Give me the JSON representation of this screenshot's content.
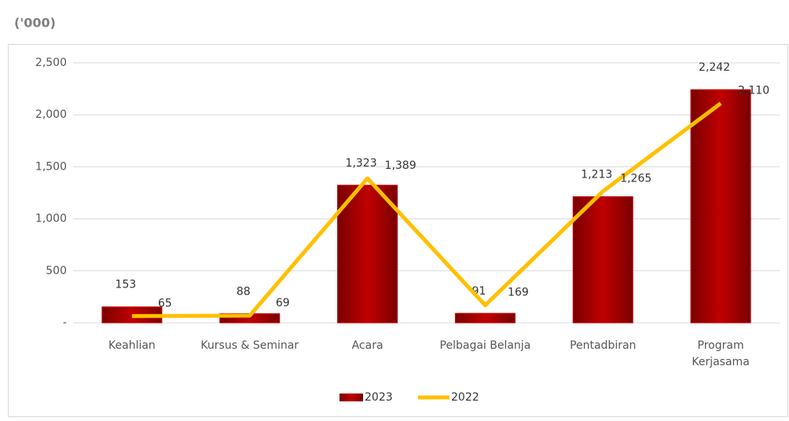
{
  "chart_data": {
    "type": "bar_line",
    "title": "('000)",
    "categories": [
      "Keahlian",
      "Kursus & Seminar",
      "Acara",
      "Pelbagai Belanja",
      "Pentadbiran",
      "Program Kerjasama"
    ],
    "series": [
      {
        "name": "2023",
        "type": "bar",
        "color": "#c00000",
        "values": [
          153,
          88,
          1323,
          91,
          1213,
          2242
        ],
        "value_labels": [
          "153",
          "88",
          "1,323",
          "91",
          "1,213",
          "2,242"
        ]
      },
      {
        "name": "2022",
        "type": "line",
        "color": "#ffc000",
        "values": [
          65,
          69,
          1389,
          169,
          1265,
          2110
        ],
        "value_labels": [
          "65",
          "69",
          "1,389",
          "169",
          "1,265",
          "2,110"
        ]
      }
    ],
    "ylim": [
      0,
      2500
    ],
    "yticks": [
      {
        "value": 0,
        "label": "-"
      },
      500,
      {
        "value": 1000,
        "label": "1,000"
      },
      {
        "value": 1500,
        "label": "1,500"
      },
      {
        "value": 2000,
        "label": "2,000"
      },
      {
        "value": 2500,
        "label": "2,500"
      }
    ],
    "grid": true,
    "legend": "bottom"
  }
}
